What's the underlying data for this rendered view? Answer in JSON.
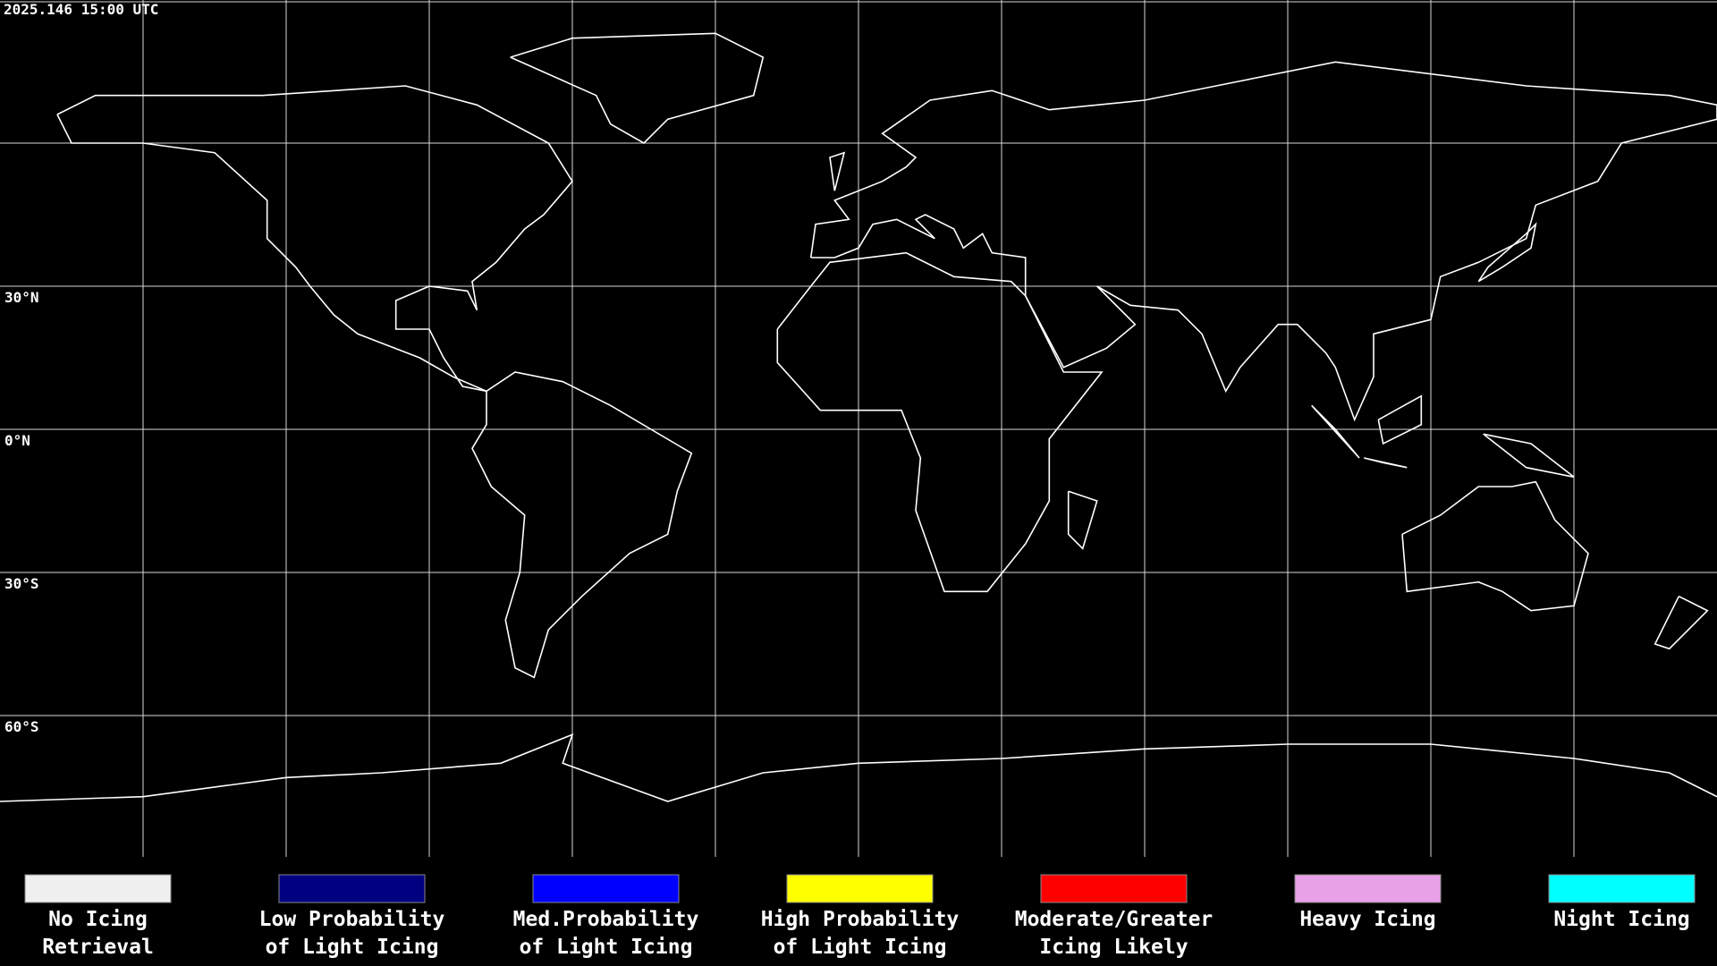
{
  "header": {
    "timestamp": "2025.146 15:00 UTC"
  },
  "map": {
    "latitude_labels": [
      "30°N",
      "0°N",
      "30°S",
      "60°S"
    ]
  },
  "legend": {
    "items": [
      {
        "label_lines": [
          "No Icing",
          "Retrieval"
        ],
        "color": "#f0f0f0"
      },
      {
        "label_lines": [
          "Low Probability",
          "of Light Icing"
        ],
        "color": "#000080"
      },
      {
        "label_lines": [
          "Med.Probability",
          "of Light Icing"
        ],
        "color": "#0000ff"
      },
      {
        "label_lines": [
          "High Probability",
          "of Light Icing"
        ],
        "color": "#ffff00"
      },
      {
        "label_lines": [
          "Moderate/Greater",
          "Icing Likely"
        ],
        "color": "#ff0000"
      },
      {
        "label_lines": [
          "Heavy Icing"
        ],
        "color": "#e8a0e8"
      },
      {
        "label_lines": [
          "Night Icing"
        ],
        "color": "#00ffff"
      }
    ]
  }
}
